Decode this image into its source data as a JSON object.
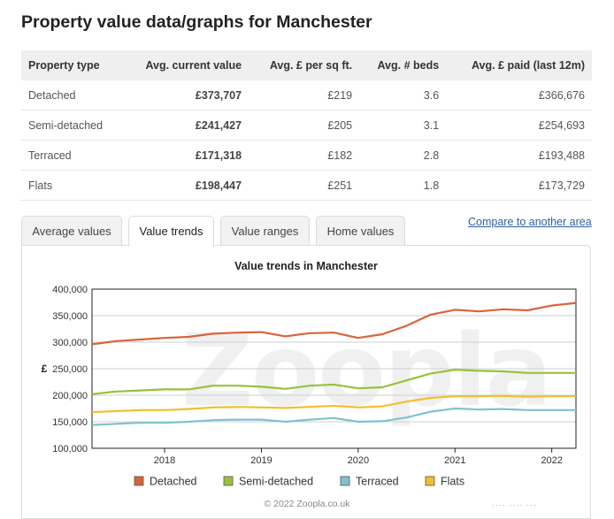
{
  "page": {
    "title": "Property value data/graphs for Manchester"
  },
  "table": {
    "headers": [
      "Property type",
      "Avg. current value",
      "Avg. £ per sq ft.",
      "Avg. # beds",
      "Avg. £ paid (last 12m)"
    ],
    "rows": [
      [
        "Detached",
        "£373,707",
        "£219",
        "3.6",
        "£366,676"
      ],
      [
        "Semi-detached",
        "£241,427",
        "£205",
        "3.1",
        "£254,693"
      ],
      [
        "Terraced",
        "£171,318",
        "£182",
        "2.8",
        "£193,488"
      ],
      [
        "Flats",
        "£198,447",
        "£251",
        "1.8",
        "£173,729"
      ]
    ]
  },
  "tabs": [
    {
      "label": "Average values",
      "active": false
    },
    {
      "label": "Value trends",
      "active": true
    },
    {
      "label": "Value ranges",
      "active": false
    },
    {
      "label": "Home values",
      "active": false
    }
  ],
  "compare_link": "Compare to another area",
  "watermark": "Zoopla",
  "footer": {
    "copyright": "© 2022 Zoopla.co.uk"
  },
  "chart_data": {
    "type": "line",
    "title": "Value trends in Manchester",
    "ylabel": "£",
    "xlabel": "",
    "ylim": [
      100000,
      400000
    ],
    "xlim": [
      2017.25,
      2022.25
    ],
    "yticks": [
      "100,000",
      "150,000",
      "200,000",
      "250,000",
      "300,000",
      "350,000",
      "400,000"
    ],
    "xticks": [
      "2018",
      "2019",
      "2020",
      "2021",
      "2022"
    ],
    "grid": true,
    "legend_position": "bottom",
    "x": [
      2017.25,
      2017.5,
      2017.75,
      2018.0,
      2018.25,
      2018.5,
      2018.75,
      2019.0,
      2019.25,
      2019.5,
      2019.75,
      2020.0,
      2020.25,
      2020.5,
      2020.75,
      2021.0,
      2021.25,
      2021.5,
      2021.75,
      2022.0,
      2022.25
    ],
    "series": [
      {
        "name": "Detached",
        "color": "#d9643a",
        "values": [
          296000,
          302000,
          305000,
          308000,
          310000,
          316000,
          318000,
          319000,
          311000,
          317000,
          318000,
          308000,
          315000,
          331000,
          352000,
          361000,
          358000,
          362000,
          360000,
          369000,
          374000
        ]
      },
      {
        "name": "Semi-detached",
        "color": "#9bc03b",
        "values": [
          202000,
          207000,
          209000,
          211000,
          211000,
          218000,
          218000,
          216000,
          212000,
          218000,
          220000,
          213000,
          215000,
          228000,
          241000,
          248000,
          246000,
          245000,
          242000,
          242000,
          242000
        ]
      },
      {
        "name": "Terraced",
        "color": "#7fc2cf",
        "values": [
          144000,
          146000,
          148000,
          148000,
          150000,
          153000,
          154000,
          154000,
          150000,
          154000,
          157000,
          150000,
          151000,
          158000,
          169000,
          175000,
          173000,
          174000,
          172000,
          172000,
          172000
        ]
      },
      {
        "name": "Flats",
        "color": "#f0c02c",
        "values": [
          168000,
          170000,
          172000,
          172000,
          174000,
          177000,
          178000,
          177000,
          176000,
          178000,
          180000,
          177000,
          179000,
          188000,
          195000,
          198000,
          198000,
          199000,
          197000,
          198000,
          198000
        ]
      }
    ]
  }
}
